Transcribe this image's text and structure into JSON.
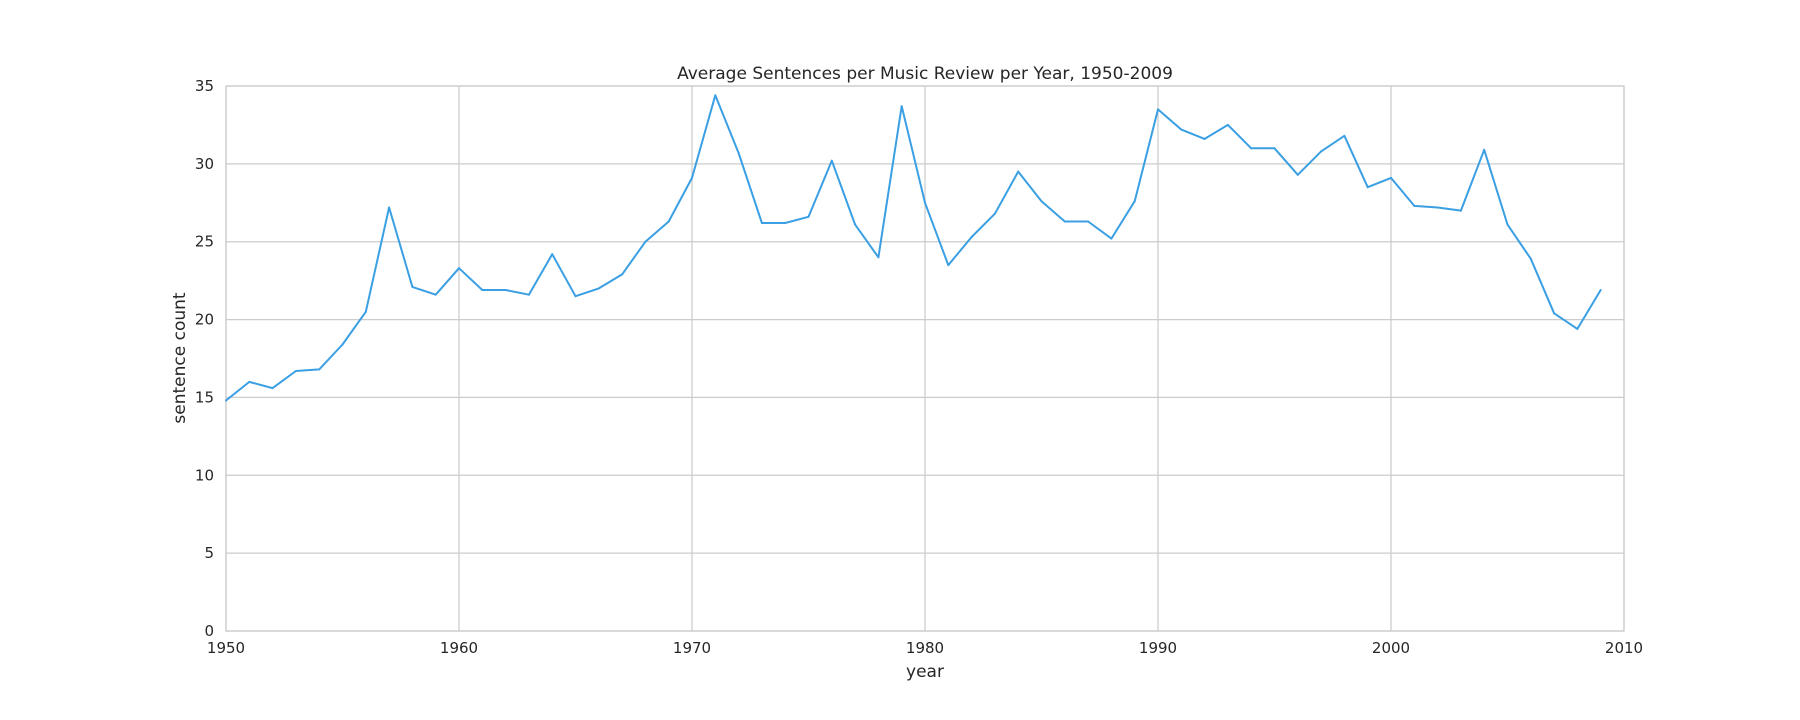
{
  "chart_data": {
    "type": "line",
    "title": "Average Sentences per Music Review per Year, 1950-2009",
    "xlabel": "year",
    "ylabel": "sentence count",
    "xlim": [
      1950,
      2010
    ],
    "ylim": [
      0,
      35
    ],
    "xticks": [
      1950,
      1960,
      1970,
      1980,
      1990,
      2000,
      2010
    ],
    "yticks": [
      0,
      5,
      10,
      15,
      20,
      25,
      30,
      35
    ],
    "grid": true,
    "legend": "none",
    "line_color": "#3a9fe3",
    "x": [
      1950,
      1951,
      1952,
      1953,
      1954,
      1955,
      1956,
      1957,
      1958,
      1959,
      1960,
      1961,
      1962,
      1963,
      1964,
      1965,
      1966,
      1967,
      1968,
      1969,
      1970,
      1971,
      1972,
      1973,
      1974,
      1975,
      1976,
      1977,
      1978,
      1979,
      1980,
      1981,
      1982,
      1983,
      1984,
      1985,
      1986,
      1987,
      1988,
      1989,
      1990,
      1991,
      1992,
      1993,
      1994,
      1995,
      1996,
      1997,
      1998,
      1999,
      2000,
      2001,
      2002,
      2003,
      2004,
      2005,
      2006,
      2007,
      2008,
      2009
    ],
    "series": [
      {
        "values": [
          14.8,
          16.0,
          15.6,
          16.7,
          16.8,
          18.4,
          20.5,
          27.2,
          22.1,
          21.6,
          23.3,
          21.9,
          21.9,
          21.6,
          24.2,
          21.5,
          22.0,
          22.9,
          25.0,
          26.3,
          29.1,
          34.4,
          30.7,
          26.2,
          26.2,
          26.6,
          30.2,
          26.1,
          24.0,
          33.7,
          27.5,
          23.5,
          25.3,
          26.8,
          29.5,
          27.6,
          26.3,
          26.3,
          25.2,
          27.6,
          33.5,
          32.2,
          31.6,
          32.5,
          31.0,
          31.0,
          29.3,
          30.8,
          31.8,
          28.5,
          29.1,
          27.3,
          27.2,
          27.0,
          30.9,
          26.1,
          23.9,
          20.4,
          19.4,
          21.9
        ]
      }
    ]
  }
}
